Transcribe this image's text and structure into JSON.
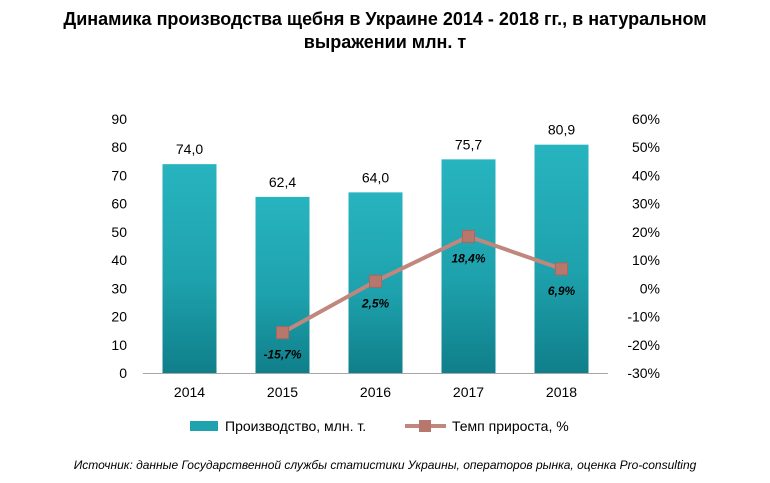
{
  "title": {
    "line1": "Динамика производства щебня в Украине 2014 - 2018 гг., в натуральном",
    "line2": "выражении млн. т"
  },
  "chart_data": {
    "type": "bar",
    "categories": [
      "2014",
      "2015",
      "2016",
      "2017",
      "2018"
    ],
    "series": [
      {
        "name": "Производство, млн. т.",
        "type": "bar",
        "axis": "left",
        "values": [
          74.0,
          62.4,
          64.0,
          75.7,
          80.9
        ],
        "labels": [
          "74,0",
          "62,4",
          "64,0",
          "75,7",
          "80,9"
        ],
        "color": "#1ea2ad"
      },
      {
        "name": "Темп прироста, %",
        "type": "line",
        "axis": "right",
        "values": [
          null,
          -15.7,
          2.5,
          18.4,
          6.9
        ],
        "labels": [
          "",
          "-15,7%",
          "2,5%",
          "18,4%",
          "6,9%"
        ],
        "color": "#c0877e"
      }
    ],
    "yleft": {
      "min": 0,
      "max": 90,
      "step": 10,
      "ticks": [
        "0",
        "10",
        "20",
        "30",
        "40",
        "50",
        "60",
        "70",
        "80",
        "90"
      ]
    },
    "yright": {
      "min": -30,
      "max": 60,
      "step": 10,
      "ticks": [
        "-30%",
        "-20%",
        "-10%",
        "0%",
        "10%",
        "20%",
        "30%",
        "40%",
        "50%",
        "60%"
      ]
    },
    "grid": false,
    "legend_position": "bottom"
  },
  "source": "Источник: данные Государственной службы статистики Украины, операторов рынка, оценка Pro-consulting"
}
